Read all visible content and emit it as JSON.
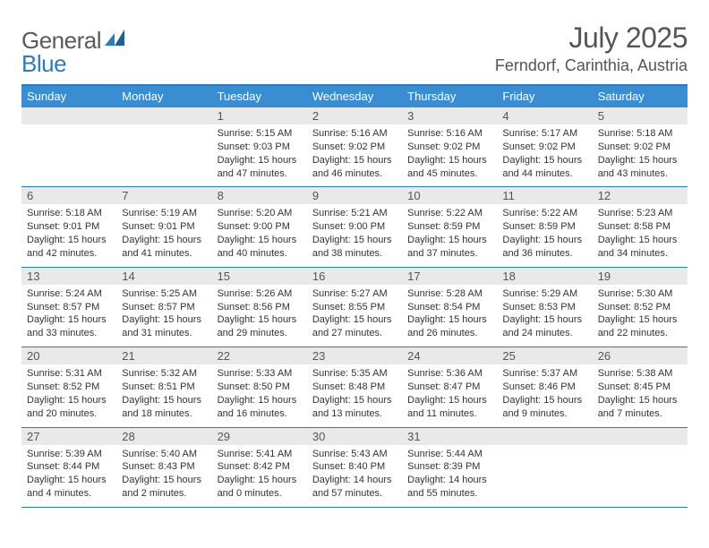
{
  "brand": {
    "part1": "General",
    "part2": "Blue"
  },
  "title": "July 2025",
  "location": "Ferndorf, Carinthia, Austria",
  "colors": {
    "accent": "#2b7bbf",
    "header_bar": "#3a8dd0",
    "day_header_bg": "#e9e9e9",
    "text": "#333333",
    "muted": "#555555",
    "background": "#ffffff"
  },
  "weekdays": [
    "Sunday",
    "Monday",
    "Tuesday",
    "Wednesday",
    "Thursday",
    "Friday",
    "Saturday"
  ],
  "weeks": [
    [
      {
        "blank": true
      },
      {
        "blank": true
      },
      {
        "num": "1",
        "sunrise": "5:15 AM",
        "sunset": "9:03 PM",
        "daylight": "15 hours and 47 minutes."
      },
      {
        "num": "2",
        "sunrise": "5:16 AM",
        "sunset": "9:02 PM",
        "daylight": "15 hours and 46 minutes."
      },
      {
        "num": "3",
        "sunrise": "5:16 AM",
        "sunset": "9:02 PM",
        "daylight": "15 hours and 45 minutes."
      },
      {
        "num": "4",
        "sunrise": "5:17 AM",
        "sunset": "9:02 PM",
        "daylight": "15 hours and 44 minutes."
      },
      {
        "num": "5",
        "sunrise": "5:18 AM",
        "sunset": "9:02 PM",
        "daylight": "15 hours and 43 minutes."
      }
    ],
    [
      {
        "num": "6",
        "sunrise": "5:18 AM",
        "sunset": "9:01 PM",
        "daylight": "15 hours and 42 minutes."
      },
      {
        "num": "7",
        "sunrise": "5:19 AM",
        "sunset": "9:01 PM",
        "daylight": "15 hours and 41 minutes."
      },
      {
        "num": "8",
        "sunrise": "5:20 AM",
        "sunset": "9:00 PM",
        "daylight": "15 hours and 40 minutes."
      },
      {
        "num": "9",
        "sunrise": "5:21 AM",
        "sunset": "9:00 PM",
        "daylight": "15 hours and 38 minutes."
      },
      {
        "num": "10",
        "sunrise": "5:22 AM",
        "sunset": "8:59 PM",
        "daylight": "15 hours and 37 minutes."
      },
      {
        "num": "11",
        "sunrise": "5:22 AM",
        "sunset": "8:59 PM",
        "daylight": "15 hours and 36 minutes."
      },
      {
        "num": "12",
        "sunrise": "5:23 AM",
        "sunset": "8:58 PM",
        "daylight": "15 hours and 34 minutes."
      }
    ],
    [
      {
        "num": "13",
        "sunrise": "5:24 AM",
        "sunset": "8:57 PM",
        "daylight": "15 hours and 33 minutes."
      },
      {
        "num": "14",
        "sunrise": "5:25 AM",
        "sunset": "8:57 PM",
        "daylight": "15 hours and 31 minutes."
      },
      {
        "num": "15",
        "sunrise": "5:26 AM",
        "sunset": "8:56 PM",
        "daylight": "15 hours and 29 minutes."
      },
      {
        "num": "16",
        "sunrise": "5:27 AM",
        "sunset": "8:55 PM",
        "daylight": "15 hours and 27 minutes."
      },
      {
        "num": "17",
        "sunrise": "5:28 AM",
        "sunset": "8:54 PM",
        "daylight": "15 hours and 26 minutes."
      },
      {
        "num": "18",
        "sunrise": "5:29 AM",
        "sunset": "8:53 PM",
        "daylight": "15 hours and 24 minutes."
      },
      {
        "num": "19",
        "sunrise": "5:30 AM",
        "sunset": "8:52 PM",
        "daylight": "15 hours and 22 minutes."
      }
    ],
    [
      {
        "num": "20",
        "sunrise": "5:31 AM",
        "sunset": "8:52 PM",
        "daylight": "15 hours and 20 minutes."
      },
      {
        "num": "21",
        "sunrise": "5:32 AM",
        "sunset": "8:51 PM",
        "daylight": "15 hours and 18 minutes."
      },
      {
        "num": "22",
        "sunrise": "5:33 AM",
        "sunset": "8:50 PM",
        "daylight": "15 hours and 16 minutes."
      },
      {
        "num": "23",
        "sunrise": "5:35 AM",
        "sunset": "8:48 PM",
        "daylight": "15 hours and 13 minutes."
      },
      {
        "num": "24",
        "sunrise": "5:36 AM",
        "sunset": "8:47 PM",
        "daylight": "15 hours and 11 minutes."
      },
      {
        "num": "25",
        "sunrise": "5:37 AM",
        "sunset": "8:46 PM",
        "daylight": "15 hours and 9 minutes."
      },
      {
        "num": "26",
        "sunrise": "5:38 AM",
        "sunset": "8:45 PM",
        "daylight": "15 hours and 7 minutes."
      }
    ],
    [
      {
        "num": "27",
        "sunrise": "5:39 AM",
        "sunset": "8:44 PM",
        "daylight": "15 hours and 4 minutes."
      },
      {
        "num": "28",
        "sunrise": "5:40 AM",
        "sunset": "8:43 PM",
        "daylight": "15 hours and 2 minutes."
      },
      {
        "num": "29",
        "sunrise": "5:41 AM",
        "sunset": "8:42 PM",
        "daylight": "15 hours and 0 minutes."
      },
      {
        "num": "30",
        "sunrise": "5:43 AM",
        "sunset": "8:40 PM",
        "daylight": "14 hours and 57 minutes."
      },
      {
        "num": "31",
        "sunrise": "5:44 AM",
        "sunset": "8:39 PM",
        "daylight": "14 hours and 55 minutes."
      },
      {
        "blank": true
      },
      {
        "blank": true
      }
    ]
  ],
  "labels": {
    "sunrise": "Sunrise:",
    "sunset": "Sunset:",
    "daylight": "Daylight:"
  }
}
